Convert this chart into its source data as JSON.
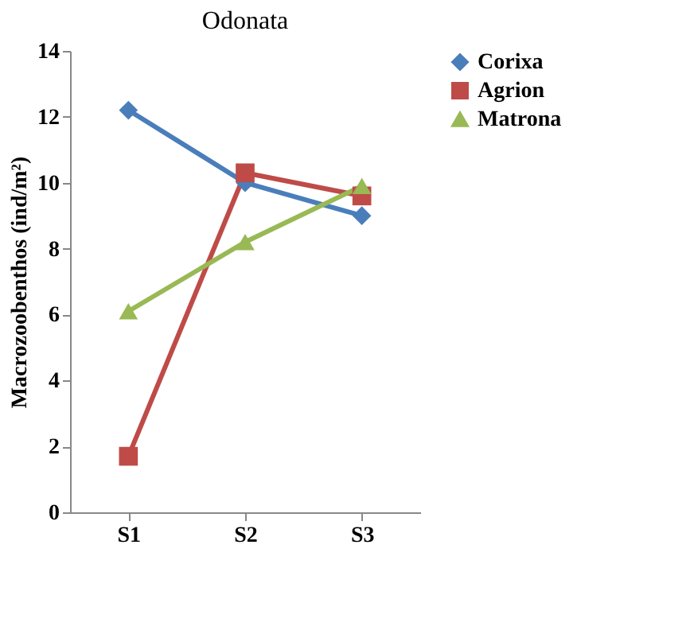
{
  "chart_data": {
    "type": "line",
    "title": "Odonata",
    "ylabel": "Macrozoobenthos (ind/m²)",
    "categories": [
      "S1",
      "S2",
      "S3"
    ],
    "series": [
      {
        "name": "Corixa",
        "color": "#4a7ebb",
        "marker": "diamond",
        "values": [
          12.2,
          10.0,
          9.0
        ]
      },
      {
        "name": "Agrion",
        "color": "#be4b48",
        "marker": "square",
        "values": [
          1.7,
          10.3,
          9.6
        ]
      },
      {
        "name": "Matrona",
        "color": "#98b954",
        "marker": "triangle",
        "values": [
          6.1,
          8.2,
          9.9
        ]
      }
    ],
    "ylim": [
      0,
      14
    ],
    "yticks": [
      0,
      2,
      4,
      6,
      8,
      10,
      12,
      14
    ],
    "grid": false,
    "legend": "right",
    "line_style": "solid"
  }
}
